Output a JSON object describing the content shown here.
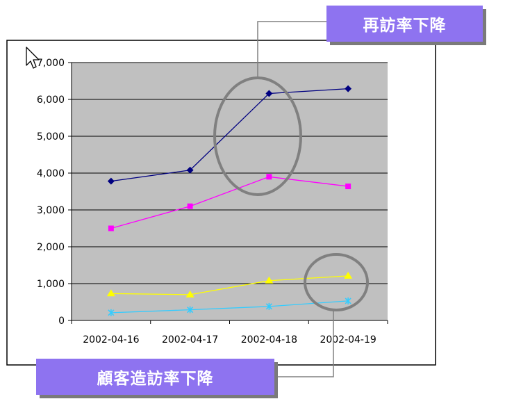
{
  "callouts": {
    "top": "再訪率下降",
    "bottom": "顧客造訪率下降"
  },
  "colors": {
    "plot_bg": "#c0c0c0",
    "callout_bg": "#8e73f0",
    "highlight_ring": "#808080"
  },
  "chart_data": {
    "type": "line",
    "categories": [
      "2002-04-16",
      "2002-04-17",
      "2002-04-18",
      "2002-04-19"
    ],
    "ylim": [
      0,
      7000
    ],
    "y_ticks": [
      0,
      1000,
      2000,
      3000,
      4000,
      5000,
      6000,
      7000
    ],
    "y_tick_labels": [
      "0",
      "1,000",
      "2,000",
      "3,000",
      "4,000",
      "5,000",
      "6,000",
      "7,000"
    ],
    "grid": true,
    "series": [
      {
        "values": [
          3780,
          4080,
          6160,
          6290
        ],
        "color": "#000080",
        "marker": "diamond"
      },
      {
        "values": [
          2500,
          3100,
          3900,
          3640
        ],
        "color": "#ff00ff",
        "marker": "square"
      },
      {
        "values": [
          730,
          700,
          1080,
          1210
        ],
        "color": "#ffff00",
        "marker": "triangle"
      },
      {
        "values": [
          210,
          290,
          380,
          530
        ],
        "color": "#33ccff",
        "marker": "star"
      }
    ]
  }
}
